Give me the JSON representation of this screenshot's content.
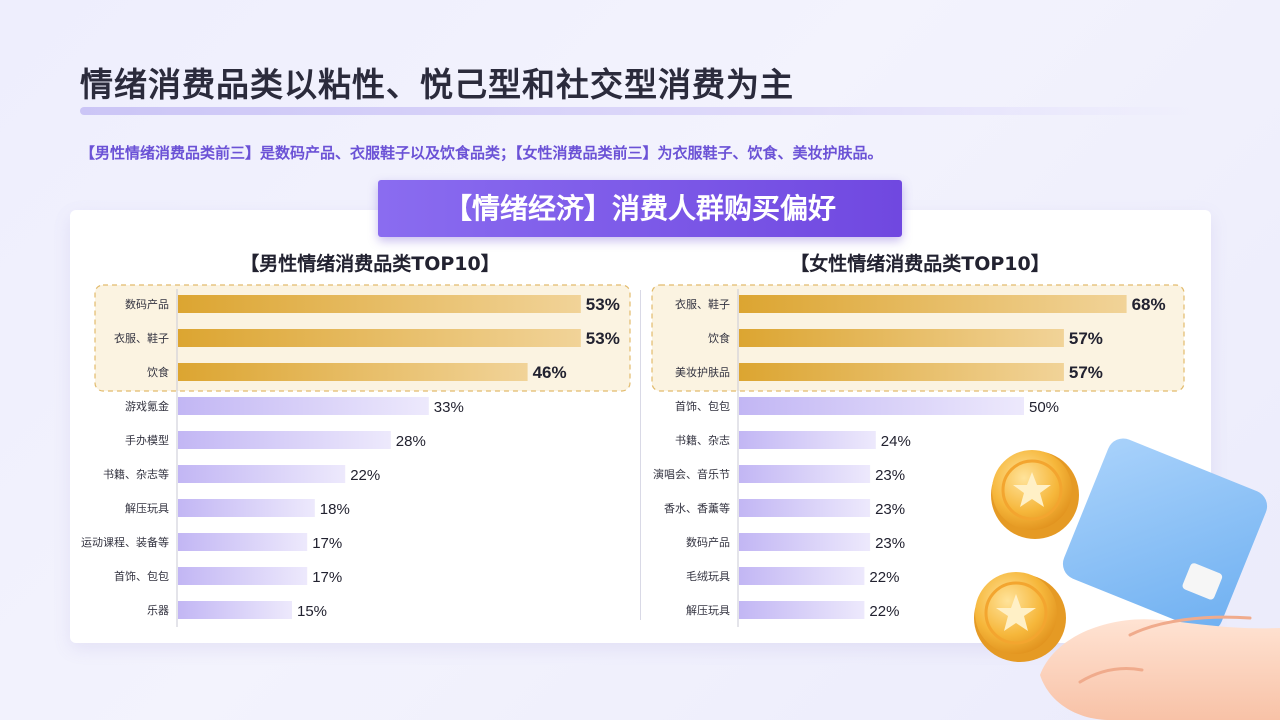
{
  "page": {
    "title": "情绪消费品类以粘性、悦己型和社交型消费为主",
    "subtitle": "【男性情绪消费品类前三】是数码产品、衣服鞋子以及饮食品类；【女性消费品类前三】为衣服鞋子、饮食、美妆护肤品。",
    "banner": "【情绪经济】消费人群购买偏好"
  },
  "colors": {
    "top_bar_start": "#dca531",
    "top_bar_end": "#f1d398",
    "other_bar_start": "#c2b6f4",
    "other_bar_end": "#ede9fc",
    "highlight_fill": "#fbf3e1",
    "highlight_border": "#e2bb6c",
    "accent": "#6b52d6"
  },
  "chart_data": [
    {
      "type": "bar",
      "orientation": "horizontal",
      "title": "【男性情绪消费品类TOP10】",
      "categories": [
        "数码产品",
        "衣服、鞋子",
        "饮食",
        "游戏氪金",
        "手办模型",
        "书籍、杂志等",
        "解压玩具",
        "运动课程、装备等",
        "首饰、包包",
        "乐器"
      ],
      "values": [
        53,
        53,
        46,
        33,
        28,
        22,
        18,
        17,
        17,
        15
      ],
      "value_labels": [
        "53%",
        "53%",
        "46%",
        "33%",
        "28%",
        "22%",
        "18%",
        "17%",
        "17%",
        "15%"
      ],
      "unit": "%",
      "highlight_top": 3
    },
    {
      "type": "bar",
      "orientation": "horizontal",
      "title": "【女性情绪消费品类TOP10】",
      "categories": [
        "衣服、鞋子",
        "饮食",
        "美妆护肤品",
        "首饰、包包",
        "书籍、杂志",
        "演唱会、音乐节",
        "香水、香薰等",
        "数码产品",
        "毛绒玩具",
        "解压玩具"
      ],
      "values": [
        68,
        57,
        57,
        50,
        24,
        23,
        23,
        23,
        22,
        22
      ],
      "value_labels": [
        "68%",
        "57%",
        "57%",
        "50%",
        "24%",
        "23%",
        "23%",
        "23%",
        "22%",
        "22%"
      ],
      "unit": "%",
      "highlight_top": 3
    }
  ]
}
